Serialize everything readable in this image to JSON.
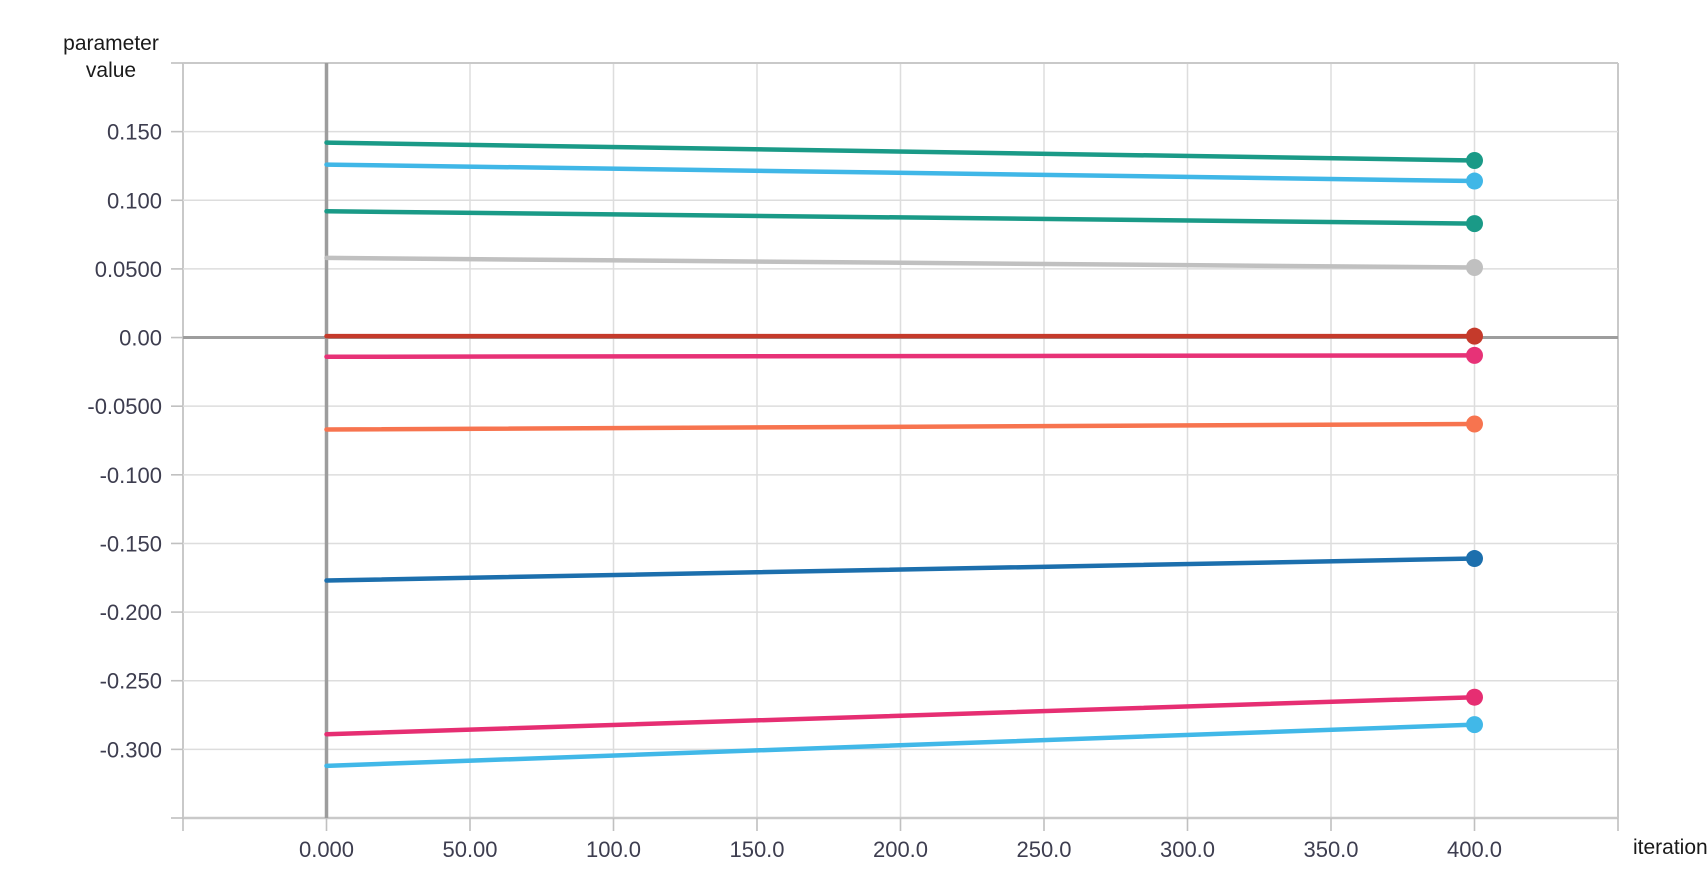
{
  "chart_data": {
    "type": "line",
    "title": "",
    "xlabel": "iteration",
    "ylabel": "parameter value",
    "ylabel_line1": "parameter",
    "ylabel_line2": "value",
    "xlim": [
      -50,
      450
    ],
    "ylim": [
      -0.35,
      0.2
    ],
    "x_gridline_step": 50,
    "y_gridline_step": 0.05,
    "grid": true,
    "legend": false,
    "emphasized_zero_lines": {
      "x": 0,
      "y": 0
    },
    "x_ticks": [
      {
        "value": 0,
        "label": "0.000"
      },
      {
        "value": 50,
        "label": "50.00"
      },
      {
        "value": 100,
        "label": "100.0"
      },
      {
        "value": 150,
        "label": "150.0"
      },
      {
        "value": 200,
        "label": "200.0"
      },
      {
        "value": 250,
        "label": "250.0"
      },
      {
        "value": 300,
        "label": "300.0"
      },
      {
        "value": 350,
        "label": "350.0"
      },
      {
        "value": 400,
        "label": "400.0"
      }
    ],
    "y_ticks": [
      {
        "value": 0.15,
        "label": "0.150"
      },
      {
        "value": 0.1,
        "label": "0.100"
      },
      {
        "value": 0.05,
        "label": "0.0500"
      },
      {
        "value": 0.0,
        "label": "0.00"
      },
      {
        "value": -0.05,
        "label": "-0.0500"
      },
      {
        "value": -0.1,
        "label": "-0.100"
      },
      {
        "value": -0.15,
        "label": "-0.150"
      },
      {
        "value": -0.2,
        "label": "-0.200"
      },
      {
        "value": -0.25,
        "label": "-0.250"
      },
      {
        "value": -0.3,
        "label": "-0.300"
      }
    ],
    "x": [
      0,
      400
    ],
    "series": [
      {
        "name": "teal-top",
        "color": "#1A9A87",
        "values": [
          0.142,
          0.129
        ]
      },
      {
        "name": "cyan-top",
        "color": "#40B7E7",
        "values": [
          0.126,
          0.114
        ]
      },
      {
        "name": "teal-mid",
        "color": "#1A9A87",
        "values": [
          0.092,
          0.083
        ]
      },
      {
        "name": "gray",
        "color": "#C0C0C0",
        "values": [
          0.058,
          0.051
        ]
      },
      {
        "name": "red",
        "color": "#C53A2B",
        "values": [
          0.001,
          0.001
        ]
      },
      {
        "name": "pink-upper",
        "color": "#E73277",
        "values": [
          -0.014,
          -0.013
        ]
      },
      {
        "name": "orange",
        "color": "#F7744F",
        "values": [
          -0.067,
          -0.063
        ]
      },
      {
        "name": "blue",
        "color": "#1C6FAD",
        "values": [
          -0.177,
          -0.161
        ]
      },
      {
        "name": "pink-lower",
        "color": "#E62E72",
        "values": [
          -0.289,
          -0.262
        ]
      },
      {
        "name": "cyan-bottom",
        "color": "#41B8E8",
        "values": [
          -0.312,
          -0.282
        ]
      }
    ],
    "colors": {
      "grid": "#DDDDDD",
      "border": "#C9C9C9",
      "zero_line": "#9D9D9D",
      "tick": "#C0C0C0",
      "tick_label": "#3D3D4F",
      "axis_title": "#1A1A1A",
      "background": "#FFFFFF"
    }
  }
}
